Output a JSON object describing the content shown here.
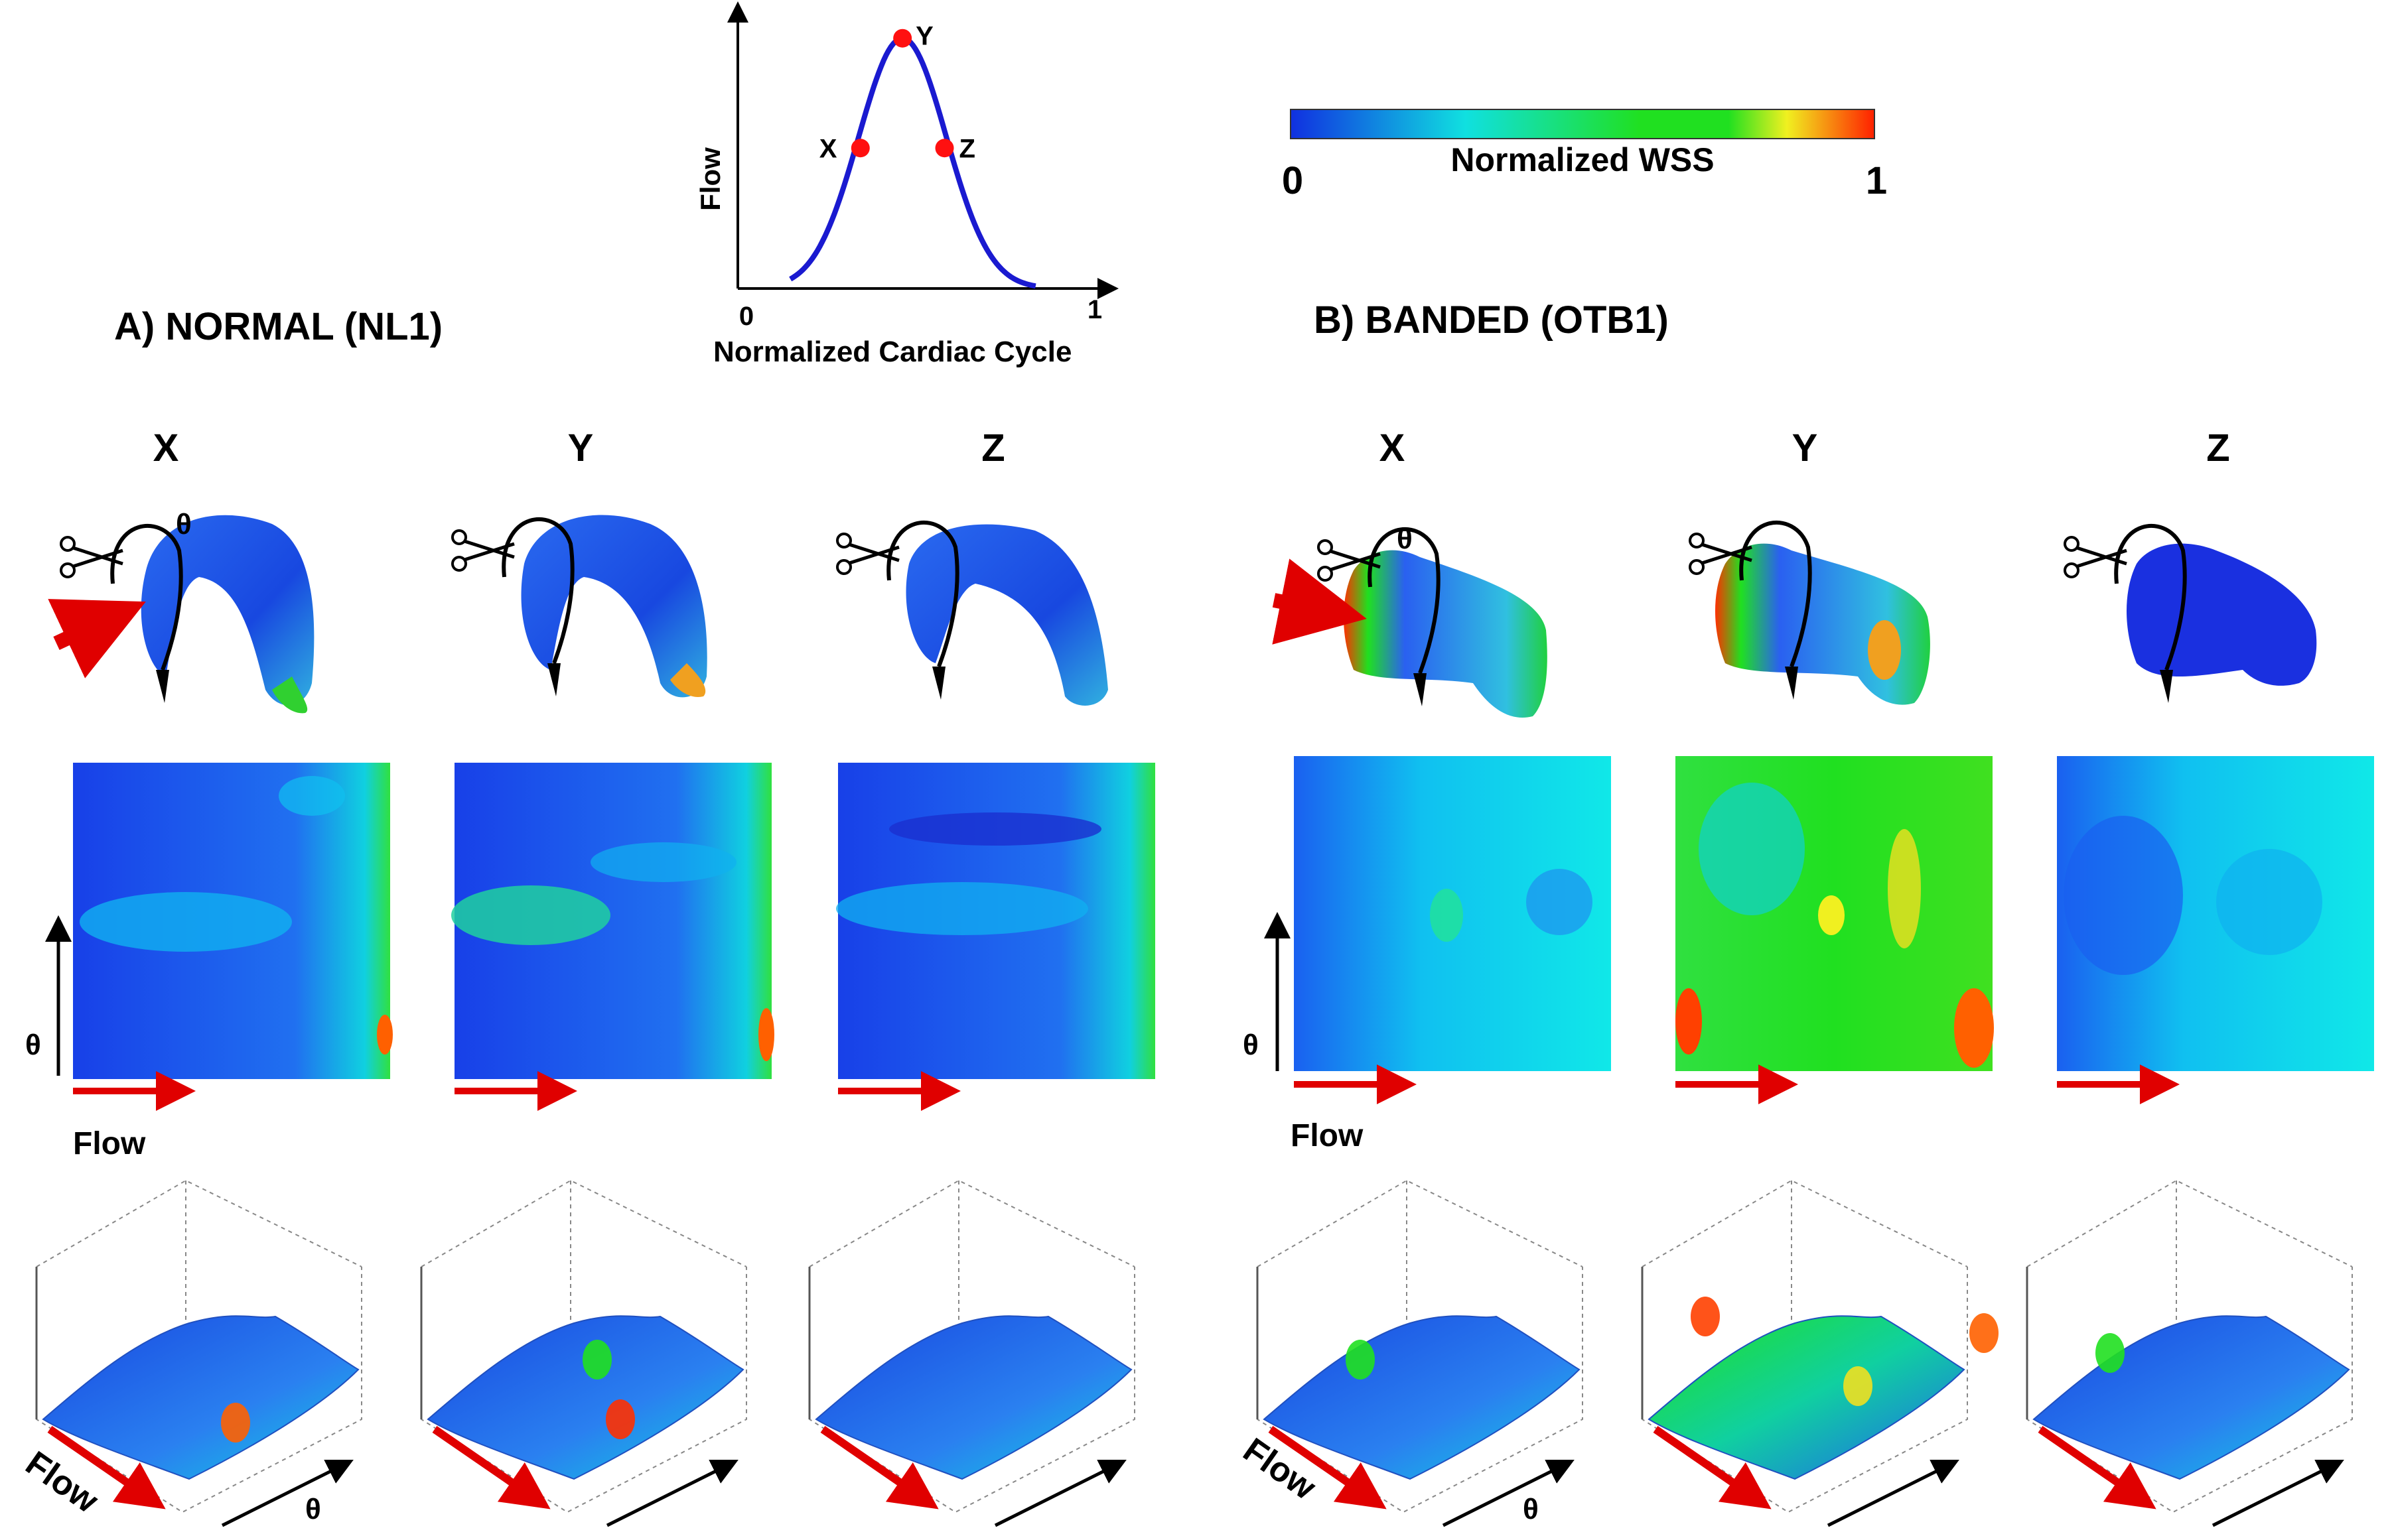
{
  "colors": {
    "wss_low": "#1030e0",
    "wss_mid": "#10e0e0",
    "wss_green": "#20e020",
    "wss_yellow": "#f0f020",
    "wss_high": "#ff2000",
    "flow_curve": "#1a1ad0",
    "marker": "#ff1010",
    "arrow_red": "#e00000"
  },
  "inset_chart": {
    "ylabel": "Flow",
    "xlabel": "Normalized Cardiac Cycle",
    "x_start": "0",
    "x_end": "1",
    "points": [
      {
        "label": "X",
        "x": 0.35,
        "y": 0.55
      },
      {
        "label": "Y",
        "x": 0.47,
        "y": 0.98
      },
      {
        "label": "Z",
        "x": 0.59,
        "y": 0.55
      }
    ]
  },
  "colorbar": {
    "title": "Normalized WSS",
    "min_label": "0",
    "max_label": "1"
  },
  "panels": [
    {
      "title": "A) NORMAL (NL1)",
      "columns": [
        "X",
        "Y",
        "Z"
      ]
    },
    {
      "title": "B) BANDED (OTB1)",
      "columns": [
        "X",
        "Y",
        "Z"
      ]
    }
  ],
  "axis_labels": {
    "theta": "θ",
    "flow": "Flow"
  }
}
